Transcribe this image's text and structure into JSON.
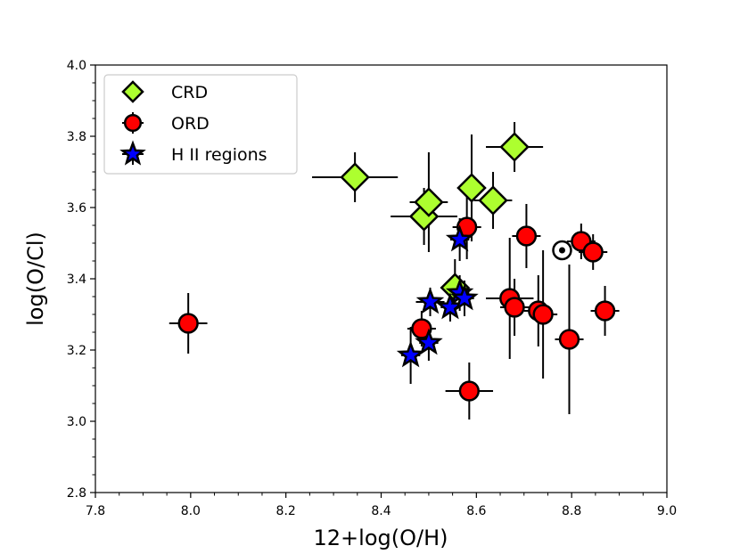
{
  "chart_data": {
    "type": "scatter",
    "title": "",
    "xlabel": "12+log(O/H)",
    "ylabel": "log(O/Cl)",
    "xlim": [
      7.8,
      9.0
    ],
    "ylim": [
      2.8,
      4.0
    ],
    "xticks": [
      "7.8",
      "8.0",
      "8.2",
      "8.4",
      "8.6",
      "8.8",
      "9.0"
    ],
    "yticks": [
      "2.8",
      "3.0",
      "3.2",
      "3.4",
      "3.6",
      "3.8",
      "4.0"
    ],
    "legend_position": "top-left",
    "series": [
      {
        "name": "CRD",
        "marker": "diamond",
        "color": "#adff2f",
        "points": [
          {
            "x": 8.345,
            "y": 3.685,
            "xerr": 0.09,
            "yerr": 0.07
          },
          {
            "x": 8.49,
            "y": 3.575,
            "xerr": 0.07,
            "yerr": 0.08
          },
          {
            "x": 8.5,
            "y": 3.615,
            "xerr": 0.04,
            "yerr": 0.14
          },
          {
            "x": 8.59,
            "y": 3.655,
            "xerr": 0.03,
            "yerr": 0.15
          },
          {
            "x": 8.635,
            "y": 3.62,
            "xerr": 0.04,
            "yerr": 0.08
          },
          {
            "x": 8.68,
            "y": 3.77,
            "xerr": 0.06,
            "yerr": 0.07
          },
          {
            "x": 8.555,
            "y": 3.375,
            "xerr": 0.03,
            "yerr": 0.08
          }
        ]
      },
      {
        "name": "ORD",
        "marker": "circle",
        "color": "#ff0000",
        "points": [
          {
            "x": 7.995,
            "y": 3.275,
            "xerr": 0.04,
            "yerr": 0.085
          },
          {
            "x": 8.485,
            "y": 3.26,
            "xerr": 0.03,
            "yerr": 0.05
          },
          {
            "x": 8.58,
            "y": 3.545,
            "xerr": 0.03,
            "yerr": 0.09
          },
          {
            "x": 8.585,
            "y": 3.085,
            "xerr": 0.05,
            "yerr": 0.08
          },
          {
            "x": 8.67,
            "y": 3.345,
            "xerr": 0.05,
            "yerr": 0.17
          },
          {
            "x": 8.68,
            "y": 3.32,
            "xerr": 0.03,
            "yerr": 0.08
          },
          {
            "x": 8.705,
            "y": 3.52,
            "xerr": 0.03,
            "yerr": 0.09
          },
          {
            "x": 8.73,
            "y": 3.31,
            "xerr": 0.03,
            "yerr": 0.1
          },
          {
            "x": 8.74,
            "y": 3.3,
            "xerr": 0.03,
            "yerr": 0.18
          },
          {
            "x": 8.795,
            "y": 3.23,
            "xerr": 0.03,
            "yerr": 0.21
          },
          {
            "x": 8.82,
            "y": 3.505,
            "xerr": 0.03,
            "yerr": 0.05
          },
          {
            "x": 8.845,
            "y": 3.475,
            "xerr": 0.03,
            "yerr": 0.05
          },
          {
            "x": 8.87,
            "y": 3.31,
            "xerr": 0.03,
            "yerr": 0.07
          }
        ]
      },
      {
        "name": "H II regions",
        "marker": "star",
        "color": "#0000ff",
        "points": [
          {
            "x": 8.462,
            "y": 3.185,
            "xerr": 0.02,
            "yerr": 0.08
          },
          {
            "x": 8.5,
            "y": 3.22,
            "xerr": 0.02,
            "yerr": 0.05
          },
          {
            "x": 8.503,
            "y": 3.335,
            "xerr": 0.03,
            "yerr": 0.04
          },
          {
            "x": 8.545,
            "y": 3.32,
            "xerr": 0.02,
            "yerr": 0.04
          },
          {
            "x": 8.565,
            "y": 3.51,
            "xerr": 0.02,
            "yerr": 0.06
          },
          {
            "x": 8.565,
            "y": 3.36,
            "xerr": 0.02,
            "yerr": 0.05
          },
          {
            "x": 8.575,
            "y": 3.345,
            "xerr": 0.02,
            "yerr": 0.05
          }
        ]
      }
    ],
    "annotations": [
      {
        "symbol": "sun",
        "x": 8.78,
        "y": 3.48
      }
    ]
  }
}
